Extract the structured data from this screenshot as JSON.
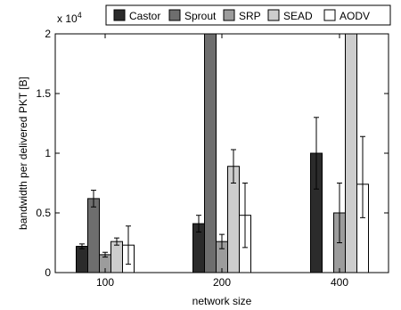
{
  "chart_data": {
    "type": "bar",
    "xlabel": "network size",
    "ylabel": "bandwidth per delivered PKT [B]",
    "y_exponent_label": "x 10",
    "y_exponent_power": "4",
    "ylim": [
      0,
      20000
    ],
    "yticks": [
      0,
      5000,
      10000,
      15000,
      20000
    ],
    "ytick_labels": [
      "0",
      "0.5",
      "1",
      "1.5",
      "2"
    ],
    "categories": [
      "100",
      "200",
      "400"
    ],
    "legend_position": "top",
    "grid": false,
    "series": [
      {
        "name": "Castor",
        "color": "#2b2b2b",
        "values": [
          2200,
          4100,
          10000
        ],
        "err_low": [
          200,
          700,
          3000
        ],
        "err_high": [
          200,
          700,
          3000
        ]
      },
      {
        "name": "Sprout",
        "color": "#6e6e6e",
        "values": [
          6200,
          20000,
          null
        ],
        "err_low": [
          700,
          0,
          0
        ],
        "err_high": [
          700,
          0,
          0
        ]
      },
      {
        "name": "SRP",
        "color": "#9c9c9c",
        "values": [
          1500,
          2600,
          5000
        ],
        "err_low": [
          200,
          600,
          2500
        ],
        "err_high": [
          200,
          600,
          2500
        ]
      },
      {
        "name": "SEAD",
        "color": "#cdcdcd",
        "values": [
          2600,
          8900,
          20000
        ],
        "err_low": [
          300,
          1400,
          0
        ],
        "err_high": [
          300,
          1400,
          0
        ]
      },
      {
        "name": "AODV",
        "color": "#ffffff",
        "values": [
          2300,
          4800,
          7400
        ],
        "err_low": [
          1600,
          2700,
          2800
        ],
        "err_high": [
          1600,
          2700,
          4000
        ]
      }
    ]
  }
}
